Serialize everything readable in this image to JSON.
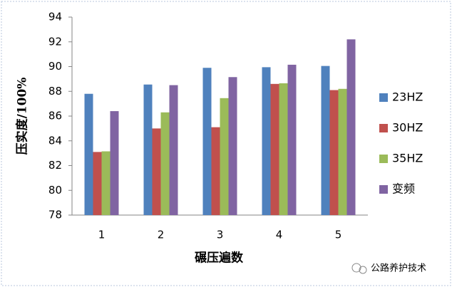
{
  "chart_data": {
    "type": "bar",
    "x_label": "碾压遍数",
    "y_label": "压实度/100%",
    "categories": [
      "1",
      "2",
      "3",
      "4",
      "5"
    ],
    "series": [
      {
        "name": "23HZ",
        "color": "#4f81bd",
        "values": [
          87.8,
          88.55,
          89.9,
          89.95,
          90.05
        ]
      },
      {
        "name": "30HZ",
        "color": "#c0504d",
        "values": [
          83.1,
          85.0,
          85.1,
          88.6,
          88.1
        ]
      },
      {
        "name": "35HZ",
        "color": "#9bbb59",
        "values": [
          83.15,
          86.3,
          87.45,
          88.65,
          88.2
        ]
      },
      {
        "name": "变频",
        "color": "#8064a2",
        "values": [
          86.4,
          88.5,
          89.15,
          90.15,
          92.2
        ]
      }
    ],
    "ylim": [
      78,
      94
    ],
    "yticks": [
      78,
      80,
      82,
      84,
      86,
      88,
      90,
      92,
      94
    ],
    "grid": false,
    "legend": "right",
    "watermark": "公路养护技术"
  }
}
